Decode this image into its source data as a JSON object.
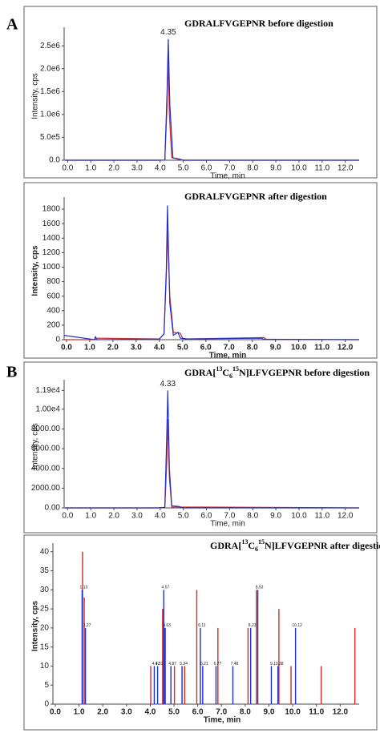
{
  "figure": {
    "labels": [
      "A",
      "B"
    ]
  },
  "chart_data": [
    {
      "type": "line",
      "title": "GDRALFVGEPNR before digestion",
      "xlabel": "Time, min",
      "ylabel": "Intensity, cps",
      "xlim": [
        -0.15,
        12.6
      ],
      "ylim": [
        0,
        2800000
      ],
      "xticks": [
        {
          "value": 0,
          "label": "0.0"
        },
        {
          "value": 1,
          "label": "1.0"
        },
        {
          "value": 2,
          "label": "2.0"
        },
        {
          "value": 3,
          "label": "3.0"
        },
        {
          "value": 4,
          "label": "4.0"
        },
        {
          "value": 5,
          "label": "5.0"
        },
        {
          "value": 6,
          "label": "6.0"
        },
        {
          "value": 7,
          "label": "7.0"
        },
        {
          "value": 8,
          "label": "8.0"
        },
        {
          "value": 9,
          "label": "9.0"
        },
        {
          "value": 10,
          "label": "10.0"
        },
        {
          "value": 11,
          "label": "11.0"
        },
        {
          "value": 12,
          "label": "12.0"
        }
      ],
      "yticks": [
        {
          "value": 0,
          "label": "0.0"
        },
        {
          "value": 500000,
          "label": "5.0e5"
        },
        {
          "value": 1000000,
          "label": "1.0e6"
        },
        {
          "value": 1500000,
          "label": "1.5e6"
        },
        {
          "value": 2000000,
          "label": "2.0e6"
        },
        {
          "value": 2500000,
          "label": "2.5e6"
        }
      ],
      "annotations": [
        {
          "text": "4.35",
          "x": 4.35,
          "y": 2650000
        }
      ],
      "series": [
        {
          "name": "red",
          "color": "#d42a2a",
          "x": [
            -0.1,
            3.9,
            4.2,
            4.3,
            4.34,
            4.4,
            4.5,
            4.8,
            5.0,
            12.6
          ],
          "y": [
            0,
            0,
            3000,
            1200000,
            2300000,
            1000000,
            60000,
            20000,
            0,
            0
          ]
        },
        {
          "name": "blue",
          "color": "#1f2fd0",
          "x": [
            -0.1,
            3.9,
            4.2,
            4.3,
            4.35,
            4.42,
            4.55,
            4.8,
            5.0,
            12.6
          ],
          "y": [
            0,
            0,
            2000,
            1500000,
            2650000,
            1200000,
            50000,
            30000,
            0,
            0
          ]
        }
      ]
    },
    {
      "type": "line",
      "title": "GDRALFVGEPNR after digestion",
      "xlabel": "Time, min",
      "ylabel": "Intensity, cps",
      "xlim": [
        -0.1,
        12.6
      ],
      "ylim": [
        0,
        1900
      ],
      "xticks": [
        {
          "value": 0,
          "label": "0.0"
        },
        {
          "value": 1,
          "label": "1.0"
        },
        {
          "value": 2,
          "label": "2.0"
        },
        {
          "value": 3,
          "label": "3.0"
        },
        {
          "value": 4,
          "label": "4.0"
        },
        {
          "value": 5,
          "label": "5.0"
        },
        {
          "value": 6,
          "label": "6.0"
        },
        {
          "value": 7,
          "label": "7.0"
        },
        {
          "value": 8,
          "label": "8.0"
        },
        {
          "value": 9,
          "label": "9.0"
        },
        {
          "value": 10,
          "label": "10.0"
        },
        {
          "value": 11,
          "label": "11.0"
        },
        {
          "value": 12,
          "label": "12.0"
        }
      ],
      "yticks": [
        0,
        200,
        400,
        600,
        800,
        1000,
        1200,
        1400,
        1600,
        1800
      ],
      "series": [
        {
          "name": "red",
          "color": "#d42a2a",
          "x": [
            -0.1,
            1.2,
            1.3,
            4.0,
            4.2,
            4.3,
            4.36,
            4.45,
            4.6,
            4.9,
            5.0,
            5.2,
            8.5,
            8.6,
            12.6
          ],
          "y": [
            0,
            0,
            20,
            10,
            80,
            900,
            1500,
            600,
            100,
            90,
            20,
            10,
            30,
            5,
            0
          ]
        },
        {
          "name": "blue",
          "color": "#1f2fd0",
          "x": [
            -0.1,
            1.2,
            1.25,
            1.3,
            4.0,
            4.2,
            4.3,
            4.35,
            4.45,
            4.6,
            4.8,
            4.9,
            5.2,
            8.4,
            8.5,
            12.6
          ],
          "y": [
            60,
            0,
            40,
            0,
            10,
            80,
            1000,
            1850,
            500,
            60,
            100,
            20,
            10,
            20,
            5,
            0
          ]
        }
      ]
    },
    {
      "type": "line",
      "title_parts": [
        {
          "text": "GDRA[",
          "style": "normal"
        },
        {
          "text": "13",
          "style": "sup"
        },
        {
          "text": "C",
          "style": "normal"
        },
        {
          "text": "6",
          "style": "sub"
        },
        {
          "text": "15",
          "style": "sup"
        },
        {
          "text": "N]LFVGEPNR before digestion",
          "style": "normal"
        }
      ],
      "xlabel": "Time, min",
      "ylabel": "Intensity, cps",
      "xlim": [
        -0.15,
        12.6
      ],
      "ylim": [
        0,
        12500
      ],
      "xticks": [
        {
          "value": 0,
          "label": "0.0"
        },
        {
          "value": 1,
          "label": "1.0"
        },
        {
          "value": 2,
          "label": "2.0"
        },
        {
          "value": 3,
          "label": "3.0"
        },
        {
          "value": 4,
          "label": "4.0"
        },
        {
          "value": 5,
          "label": "5.0"
        },
        {
          "value": 6,
          "label": "6.0"
        },
        {
          "value": 7,
          "label": "7.0"
        },
        {
          "value": 8,
          "label": "8.0"
        },
        {
          "value": 9,
          "label": "9.0"
        },
        {
          "value": 10,
          "label": "10.0"
        },
        {
          "value": 11,
          "label": "11.0"
        },
        {
          "value": 12,
          "label": "12.0"
        }
      ],
      "yticks": [
        {
          "value": 0,
          "label": "0.00"
        },
        {
          "value": 2000,
          "label": "2000.00"
        },
        {
          "value": 4000,
          "label": "4000.00"
        },
        {
          "value": 6000,
          "label": "6000.00"
        },
        {
          "value": 8000,
          "label": "8000.00"
        },
        {
          "value": 10000,
          "label": "1.00e4"
        },
        {
          "value": 11900,
          "label": "1.19e4"
        }
      ],
      "annotations": [
        {
          "text": "4.33",
          "x": 4.33,
          "y": 11900
        }
      ],
      "series": [
        {
          "name": "red",
          "color": "#d42a2a",
          "x": [
            -0.1,
            3.9,
            4.2,
            4.29,
            4.33,
            4.4,
            4.5,
            12.6
          ],
          "y": [
            0,
            0,
            50,
            5000,
            9000,
            3000,
            100,
            0
          ]
        },
        {
          "name": "blue",
          "color": "#1f2fd0",
          "x": [
            -0.1,
            3.9,
            4.2,
            4.28,
            4.33,
            4.4,
            4.5,
            4.8,
            5.0,
            12.6
          ],
          "y": [
            0,
            0,
            60,
            7000,
            11900,
            4000,
            200,
            150,
            0,
            0
          ]
        }
      ]
    },
    {
      "type": "stick",
      "title_parts": [
        {
          "text": "GDRA[",
          "style": "normal"
        },
        {
          "text": "13",
          "style": "sup"
        },
        {
          "text": "C",
          "style": "normal"
        },
        {
          "text": "6",
          "style": "sub"
        },
        {
          "text": "15",
          "style": "sup"
        },
        {
          "text": "N]LFVGEPNR after digestion",
          "style": "normal"
        }
      ],
      "xlabel": "Time, min",
      "ylabel": "Intensity, cps",
      "xlim": [
        -0.1,
        12.8
      ],
      "ylim": [
        0,
        41
      ],
      "xticks": [
        {
          "value": 0,
          "label": "0.0"
        },
        {
          "value": 1,
          "label": "1.0"
        },
        {
          "value": 2,
          "label": "2.0"
        },
        {
          "value": 3,
          "label": "3.0"
        },
        {
          "value": 4,
          "label": "4.0"
        },
        {
          "value": 5,
          "label": "5.0"
        },
        {
          "value": 6,
          "label": "6.0"
        },
        {
          "value": 7,
          "label": "7.0"
        },
        {
          "value": 8,
          "label": "8.0"
        },
        {
          "value": 9,
          "label": "9.0"
        },
        {
          "value": 10,
          "label": "10.0"
        },
        {
          "value": 11,
          "label": "11.0"
        },
        {
          "value": 12,
          "label": "12.0"
        }
      ],
      "yticks": [
        0,
        5,
        10,
        15,
        20,
        25,
        30,
        35,
        40
      ],
      "series": [
        {
          "name": "red",
          "color": "#d42a2a",
          "labeled": false,
          "x": [
            1.15,
            1.22,
            4.02,
            4.52,
            4.6,
            5.02,
            5.45,
            5.96,
            6.85,
            8.12,
            8.47,
            9.42,
            9.93,
            11.2,
            12.62
          ],
          "y": [
            40,
            28,
            10,
            25,
            20,
            10,
            10,
            30,
            20,
            20,
            30,
            25,
            10,
            10,
            20
          ]
        },
        {
          "name": "blue",
          "color": "#1f2fd0",
          "labeled": true,
          "x": [
            1.13,
            1.27,
            4.17,
            4.31,
            4.57,
            4.63,
            4.87,
            5.34,
            6.11,
            6.21,
            6.77,
            7.48,
            8.23,
            8.53,
            9.1,
            9.38,
            10.12
          ],
          "y": [
            30,
            20,
            10,
            10,
            30,
            20,
            10,
            10,
            20,
            10,
            10,
            10,
            20,
            30,
            10,
            10,
            20
          ]
        }
      ]
    }
  ]
}
